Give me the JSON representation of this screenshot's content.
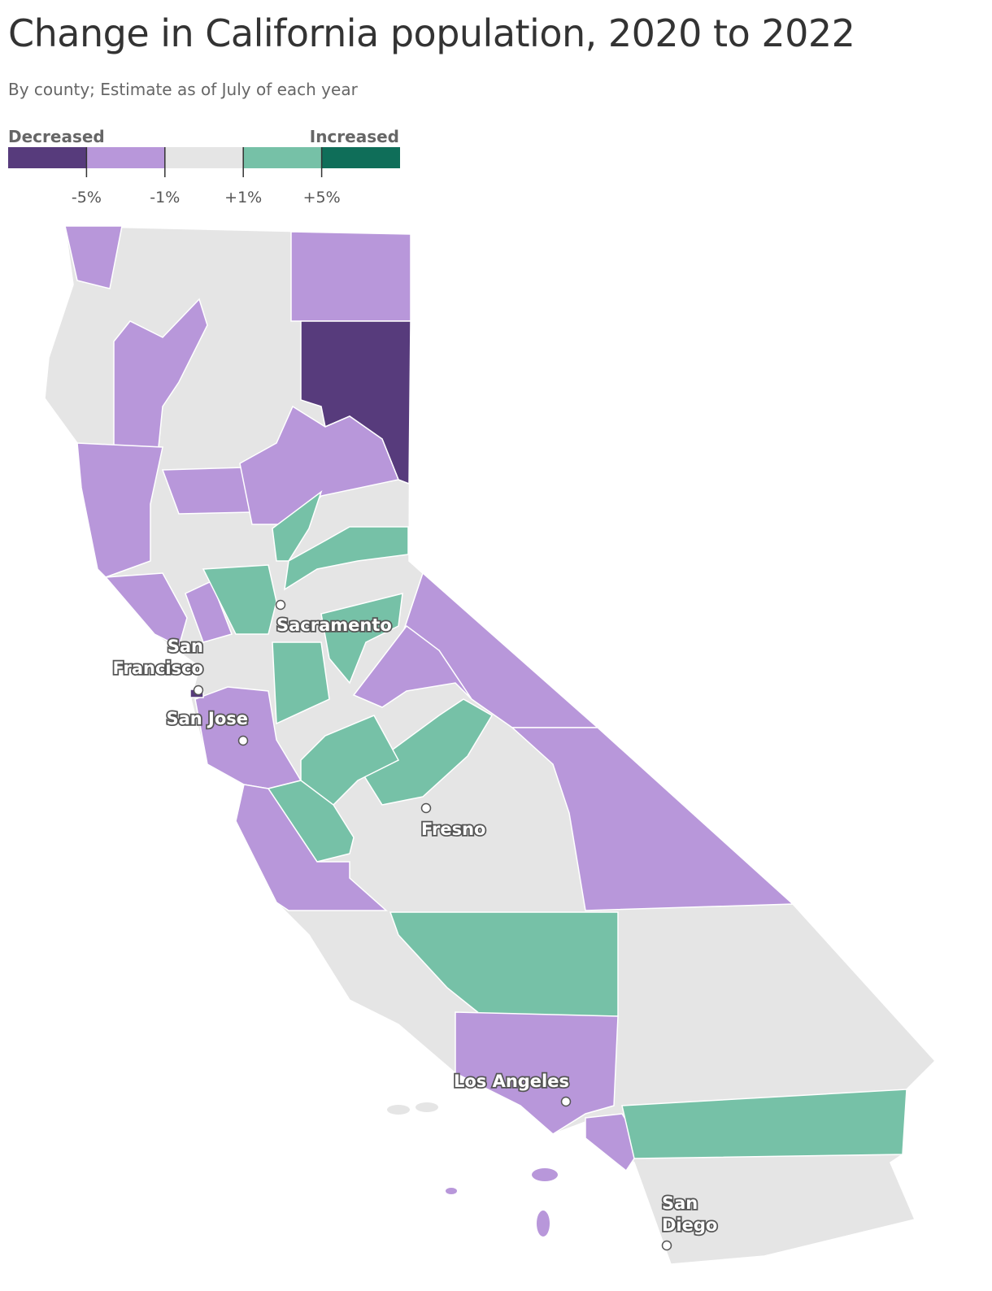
{
  "header": {
    "title": "Change in California population, 2020 to 2022",
    "subtitle": "By county; Estimate as of July of each year"
  },
  "legend": {
    "low_label": "Decreased",
    "high_label": "Increased",
    "colors": [
      "#573b7c",
      "#b897da",
      "#e5e5e5",
      "#76c1a7",
      "#0f6e59"
    ],
    "ticks": [
      {
        "value": -5,
        "label": "-5%"
      },
      {
        "value": -1,
        "label": "-1%"
      },
      {
        "value": 1,
        "label": "+1%"
      },
      {
        "value": 5,
        "label": "+5%"
      }
    ]
  },
  "cities": [
    {
      "lines": [
        "Sacramento"
      ]
    },
    {
      "lines": [
        "San",
        "Francisco"
      ]
    },
    {
      "lines": [
        "San Jose"
      ]
    },
    {
      "lines": [
        "Fresno"
      ]
    },
    {
      "lines": [
        "Los Angeles"
      ]
    },
    {
      "lines": [
        "San",
        "Diego"
      ]
    }
  ]
}
